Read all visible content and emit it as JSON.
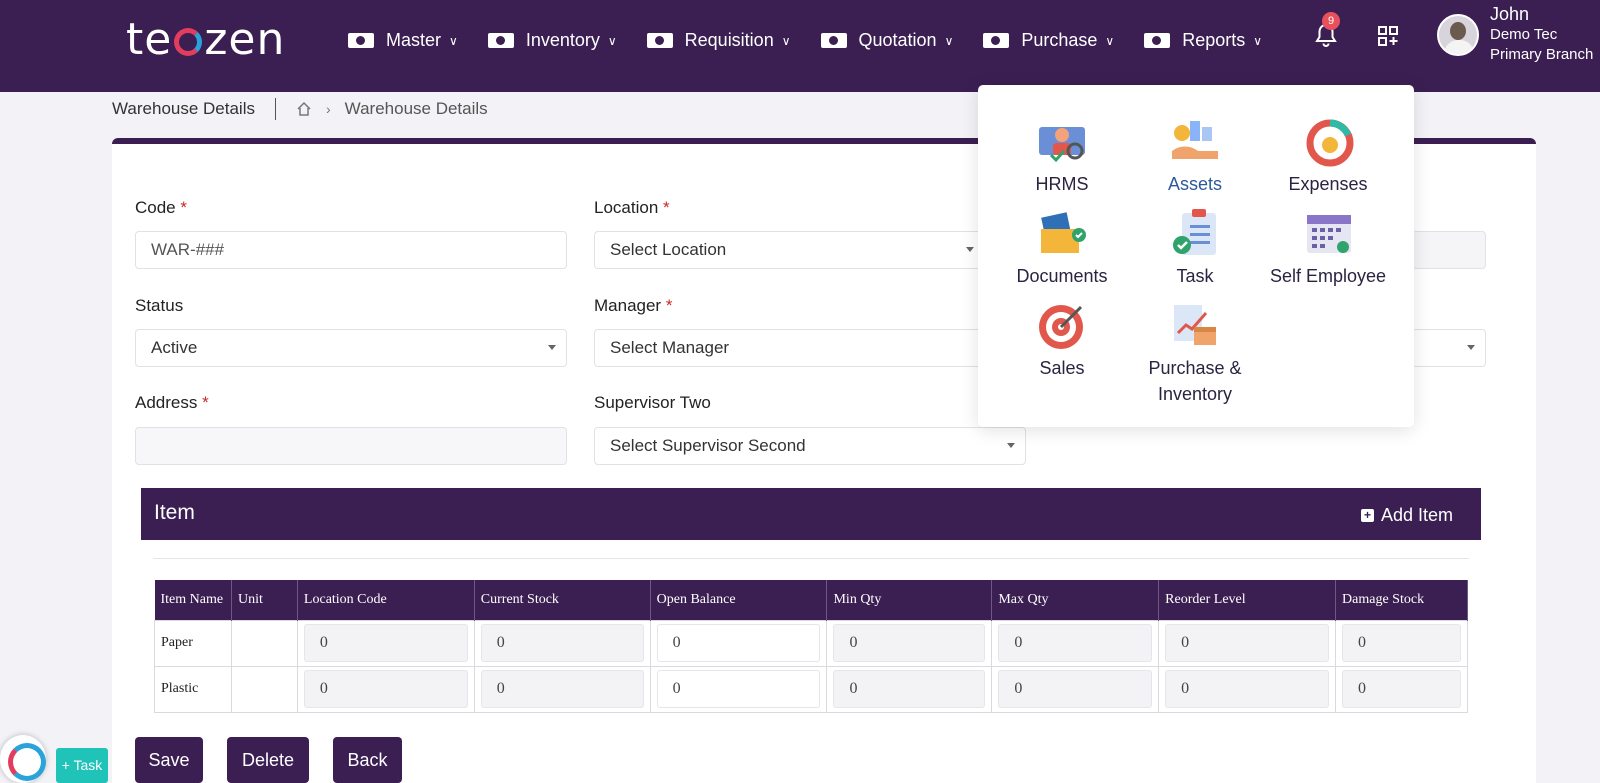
{
  "brand": {
    "logo_left": "te",
    "logo_right": "zen"
  },
  "nav": [
    {
      "label": "Master"
    },
    {
      "label": "Inventory"
    },
    {
      "label": "Requisition"
    },
    {
      "label": "Quotation"
    },
    {
      "label": "Purchase"
    },
    {
      "label": "Reports"
    }
  ],
  "notifications": {
    "count": "9"
  },
  "user": {
    "name": "John",
    "company": "Demo Tec",
    "branch": "Primary Branch"
  },
  "breadcrumb": {
    "title": "Warehouse Details",
    "current": "Warehouse Details"
  },
  "form": {
    "code_label": "Code",
    "code_value": "WAR-###",
    "location_label": "Location",
    "location_value": "Select Location",
    "status_label": "Status",
    "status_value": "Active",
    "manager_label": "Manager",
    "manager_value": "Select Manager",
    "address_label": "Address",
    "supervisor_two_label": "Supervisor Two",
    "supervisor_two_value": "Select Supervisor Second",
    "required_mark": "*"
  },
  "items": {
    "title": "Item",
    "add_label": "Add Item",
    "add_icon": "+",
    "columns": [
      "Item Name",
      "Unit",
      "Location Code",
      "Current Stock",
      "Open Balance",
      "Min Qty",
      "Max Qty",
      "Reorder Level",
      "Damage Stock"
    ],
    "rows": [
      {
        "name": "Paper",
        "unit": "",
        "location_code": "0",
        "current_stock": "0",
        "open_balance": "0",
        "min_qty": "0",
        "max_qty": "0",
        "reorder_level": "0",
        "damage_stock": "0"
      },
      {
        "name": "Plastic",
        "unit": "",
        "location_code": "0",
        "current_stock": "0",
        "open_balance": "0",
        "min_qty": "0",
        "max_qty": "0",
        "reorder_level": "0",
        "damage_stock": "0"
      }
    ]
  },
  "actions": {
    "save": "Save",
    "delete": "Delete",
    "back": "Back"
  },
  "apps_menu": [
    {
      "label": "HRMS",
      "icon": "hrms-icon"
    },
    {
      "label": "Assets",
      "icon": "assets-icon"
    },
    {
      "label": "Expenses",
      "icon": "expenses-icon"
    },
    {
      "label": "Documents",
      "icon": "documents-icon"
    },
    {
      "label": "Task",
      "icon": "task-icon"
    },
    {
      "label": "Self Employee",
      "icon": "self-employee-icon"
    },
    {
      "label": "Sales",
      "icon": "sales-icon"
    },
    {
      "label": "Purchase &",
      "label2": "Inventory",
      "icon": "purchase-inventory-icon"
    }
  ],
  "task_widget": {
    "label": "Task",
    "icon": "+"
  },
  "colors": {
    "primary": "#3b1f52",
    "accent": "#1fc3b8",
    "required": "#c62828"
  }
}
